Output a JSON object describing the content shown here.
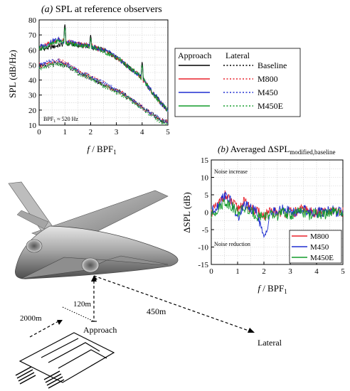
{
  "panel_a": {
    "title_prefix": "(a)",
    "title_text": "SPL at reference observers",
    "ylabel": "SPL (dB/Hz)",
    "xlabel_f": "f",
    "xlabel_rest": " / BPF",
    "xlabel_sub": "1",
    "note_prefix": "BPF",
    "note_sub": "1",
    "note_rest": " ≈ 520 Hz",
    "yticks": [
      "10",
      "20",
      "30",
      "40",
      "50",
      "60",
      "70",
      "80"
    ],
    "xticks": [
      "0",
      "1",
      "2",
      "3",
      "4",
      "5"
    ]
  },
  "legend_a": {
    "header_approach": "Approach",
    "header_lateral": "Lateral",
    "entries": [
      "Baseline",
      "M800",
      "M450",
      "M450E"
    ]
  },
  "panel_b": {
    "title_prefix": "(b)",
    "title_text": "Averaged ΔSPL",
    "title_sub": "modified,baseline",
    "ylabel": "ΔSPL (dB)",
    "xlabel_f": "f",
    "xlabel_rest": " / BPF",
    "xlabel_sub": "1",
    "annot_increase": "Noise increase",
    "annot_reduction": "Noise reduction",
    "yticks": [
      "15",
      "10",
      "5",
      "0",
      "-5",
      "-10",
      "-15"
    ],
    "xticks": [
      "0",
      "1",
      "2",
      "3",
      "4",
      "5"
    ],
    "legend": [
      "M800",
      "M450",
      "M450E"
    ]
  },
  "diagram": {
    "label_2000": "2000m",
    "label_120": "120m",
    "label_approach": "Approach",
    "label_450": "450m",
    "label_lateral": "Lateral"
  },
  "colors": {
    "baseline": "#000000",
    "m800": "#e8202a",
    "m450": "#1f2fd0",
    "m450e": "#129b2a"
  },
  "chart_data": [
    {
      "type": "line",
      "title": "(a) SPL at reference observers",
      "xlabel": "f / BPF1",
      "ylabel": "SPL (dB/Hz)",
      "xlim": [
        0,
        5
      ],
      "ylim": [
        10,
        80
      ],
      "grid": true,
      "legend": "right",
      "x": [
        0.0,
        0.25,
        0.5,
        0.75,
        1.0,
        1.25,
        1.5,
        1.75,
        2.0,
        2.25,
        2.5,
        2.75,
        3.0,
        3.25,
        3.5,
        3.75,
        4.0,
        4.25,
        4.5,
        4.75,
        5.0
      ],
      "series": [
        {
          "name": "Approach Baseline",
          "values": [
            61,
            61,
            62,
            63,
            64,
            64,
            63,
            63,
            62,
            61,
            60,
            58,
            55,
            52,
            48,
            45,
            42,
            35,
            30,
            24,
            20
          ]
        },
        {
          "name": "Approach M800",
          "values": [
            62,
            63,
            65,
            67,
            66,
            65,
            64,
            63,
            63,
            61,
            60,
            58,
            55,
            52,
            48,
            45,
            41,
            35,
            29,
            24,
            20
          ]
        },
        {
          "name": "Approach M450",
          "values": [
            62,
            63,
            66,
            67,
            65,
            65,
            64,
            63,
            63,
            61,
            60,
            58,
            55,
            52,
            48,
            45,
            42,
            35,
            30,
            24,
            20
          ]
        },
        {
          "name": "Approach M450E",
          "values": [
            61,
            62,
            64,
            66,
            65,
            64,
            63,
            63,
            62,
            61,
            59,
            57,
            55,
            52,
            48,
            45,
            41,
            35,
            29,
            24,
            20
          ]
        },
        {
          "name": "Lateral Baseline",
          "values": [
            49,
            49,
            50,
            51,
            50,
            48,
            45,
            43,
            41,
            39,
            37,
            35,
            33,
            31,
            28,
            25,
            22,
            19,
            16,
            13,
            12
          ]
        },
        {
          "name": "Lateral M800",
          "values": [
            50,
            50,
            52,
            53,
            51,
            49,
            46,
            44,
            42,
            40,
            38,
            35,
            33,
            31,
            28,
            25,
            22,
            19,
            16,
            13,
            12
          ]
        },
        {
          "name": "Lateral M450",
          "values": [
            50,
            51,
            53,
            53,
            51,
            49,
            46,
            44,
            42,
            40,
            38,
            36,
            33,
            31,
            28,
            25,
            22,
            19,
            16,
            13,
            12
          ]
        },
        {
          "name": "Lateral M450E",
          "values": [
            48,
            49,
            50,
            51,
            49,
            48,
            45,
            43,
            41,
            39,
            36,
            34,
            32,
            30,
            27,
            24,
            21,
            18,
            15,
            12,
            11
          ]
        }
      ],
      "peaks": [
        {
          "x": 1,
          "y": 77
        },
        {
          "x": 2,
          "y": 70
        },
        {
          "x": 4,
          "y": 52
        }
      ],
      "annotation": "BPF1 ≈ 520 Hz"
    },
    {
      "type": "line",
      "title": "(b) Averaged ΔSPL modified,baseline",
      "xlabel": "f / BPF1",
      "ylabel": "ΔSPL (dB)",
      "xlim": [
        0,
        5
      ],
      "ylim": [
        -15,
        15
      ],
      "grid": true,
      "legend": "bottom-right",
      "x": [
        0.0,
        0.25,
        0.5,
        0.75,
        1.0,
        1.25,
        1.5,
        1.75,
        2.0,
        2.25,
        2.5,
        2.75,
        3.0,
        3.25,
        3.5,
        3.75,
        4.0,
        4.25,
        4.5,
        4.75,
        5.0
      ],
      "series": [
        {
          "name": "M800",
          "values": [
            0,
            2,
            5,
            3,
            1,
            3,
            1,
            0,
            -1,
            0,
            0,
            0,
            0,
            0,
            1,
            0,
            0,
            0,
            0,
            0,
            0
          ]
        },
        {
          "name": "M450",
          "values": [
            0,
            2,
            5,
            3,
            -2,
            2,
            1,
            0,
            -8,
            0,
            0,
            1,
            0,
            0,
            1,
            0,
            0,
            0,
            1,
            0,
            0
          ]
        },
        {
          "name": "M450E",
          "values": [
            -1,
            1,
            3,
            2,
            0,
            1,
            0,
            -1,
            -1,
            -1,
            -1,
            0,
            -1,
            0,
            0,
            -1,
            0,
            -1,
            0,
            0,
            -1
          ]
        }
      ],
      "annotations": [
        "Noise increase",
        "Noise reduction"
      ]
    }
  ]
}
